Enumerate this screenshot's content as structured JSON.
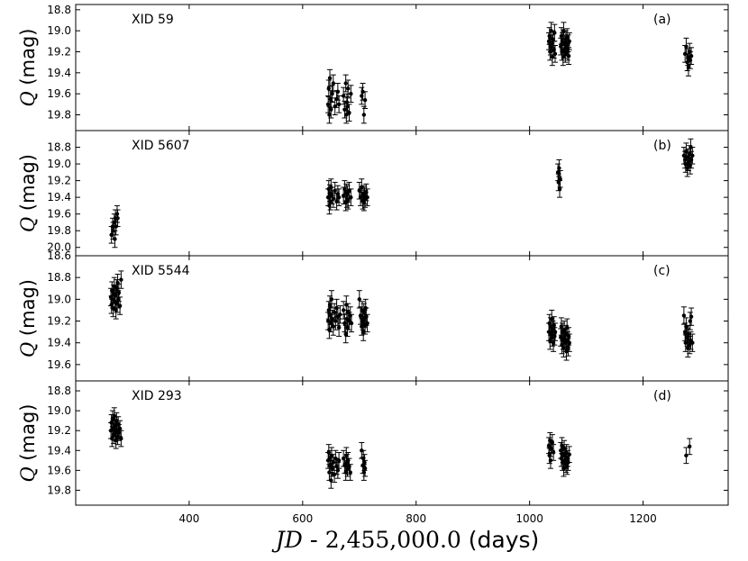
{
  "figure": {
    "xlabel_prefix": "JD",
    "xlabel_sep": " - ",
    "xlabel_offset": "2,455,000.0",
    "xlabel_unit": "(days)",
    "ylabel_symbol": "Q",
    "ylabel_unit": "(mag)"
  },
  "chart_data": [
    {
      "type": "scatter",
      "title": "XID 59",
      "panel_label": "(a)",
      "xlim": [
        200,
        1350
      ],
      "ylim": [
        19.95,
        18.75
      ],
      "xticks": [
        400,
        600,
        800,
        1000,
        1200
      ],
      "yticks": [
        18.8,
        19.0,
        19.2,
        19.4,
        19.6,
        19.8
      ],
      "ytick_labels": [
        "18.8",
        "19.0",
        "19.2",
        "19.4",
        "19.6",
        "19.8"
      ],
      "points": [
        [
          645,
          19.7
        ],
        [
          646,
          19.55
        ],
        [
          647,
          19.8
        ],
        [
          648,
          19.45
        ],
        [
          649,
          19.65
        ],
        [
          650,
          19.75
        ],
        [
          652,
          19.6
        ],
        [
          654,
          19.5
        ],
        [
          657,
          19.72
        ],
        [
          660,
          19.65
        ],
        [
          662,
          19.58
        ],
        [
          664,
          19.7
        ],
        [
          672,
          19.62
        ],
        [
          674,
          19.75
        ],
        [
          676,
          19.5
        ],
        [
          677,
          19.8
        ],
        [
          678,
          19.68
        ],
        [
          679,
          19.72
        ],
        [
          680,
          19.55
        ],
        [
          682,
          19.78
        ],
        [
          685,
          19.6
        ],
        [
          704,
          19.62
        ],
        [
          706,
          19.58
        ],
        [
          708,
          19.8
        ],
        [
          710,
          19.66
        ],
        [
          1034,
          19.1
        ],
        [
          1035,
          19.05
        ],
        [
          1036,
          19.2
        ],
        [
          1037,
          19.15
        ],
        [
          1038,
          19.0
        ],
        [
          1039,
          19.12
        ],
        [
          1040,
          19.25
        ],
        [
          1041,
          19.08
        ],
        [
          1043,
          19.18
        ],
        [
          1044,
          19.02
        ],
        [
          1045,
          19.22
        ],
        [
          1055,
          19.15
        ],
        [
          1056,
          19.05
        ],
        [
          1057,
          19.2
        ],
        [
          1058,
          19.1
        ],
        [
          1059,
          19.25
        ],
        [
          1060,
          19.0
        ],
        [
          1061,
          19.18
        ],
        [
          1062,
          19.12
        ],
        [
          1063,
          19.22
        ],
        [
          1064,
          19.08
        ],
        [
          1065,
          19.16
        ],
        [
          1066,
          19.06
        ],
        [
          1067,
          19.2
        ],
        [
          1068,
          19.12
        ],
        [
          1069,
          19.24
        ],
        [
          1070,
          19.1
        ],
        [
          1274,
          19.22
        ],
        [
          1276,
          19.15
        ],
        [
          1278,
          19.3
        ],
        [
          1279,
          19.25
        ],
        [
          1280,
          19.35
        ],
        [
          1282,
          19.2
        ],
        [
          1283,
          19.28
        ],
        [
          1285,
          19.24
        ]
      ],
      "yerr": 0.08
    },
    {
      "type": "scatter",
      "title": "XID 5607",
      "panel_label": "(b)",
      "xlim": [
        200,
        1350
      ],
      "ylim": [
        20.1,
        18.6
      ],
      "xticks": [
        400,
        600,
        800,
        1000,
        1200
      ],
      "yticks": [
        18.8,
        19.0,
        19.2,
        19.4,
        19.6,
        19.8,
        20.0
      ],
      "ytick_labels": [
        "18.8",
        "19.0",
        "19.2",
        "19.4",
        "19.6",
        "19.8",
        "20.0"
      ],
      "points": [
        [
          263,
          19.85
        ],
        [
          265,
          19.75
        ],
        [
          266,
          19.8
        ],
        [
          268,
          19.7
        ],
        [
          269,
          19.9
        ],
        [
          270,
          19.65
        ],
        [
          271,
          19.75
        ],
        [
          273,
          19.6
        ],
        [
          274,
          19.65
        ],
        [
          645,
          19.4
        ],
        [
          646,
          19.3
        ],
        [
          647,
          19.5
        ],
        [
          648,
          19.35
        ],
        [
          649,
          19.45
        ],
        [
          650,
          19.28
        ],
        [
          652,
          19.38
        ],
        [
          654,
          19.42
        ],
        [
          657,
          19.32
        ],
        [
          660,
          19.45
        ],
        [
          662,
          19.36
        ],
        [
          664,
          19.4
        ],
        [
          672,
          19.38
        ],
        [
          674,
          19.3
        ],
        [
          676,
          19.46
        ],
        [
          677,
          19.34
        ],
        [
          678,
          19.42
        ],
        [
          679,
          19.36
        ],
        [
          680,
          19.44
        ],
        [
          682,
          19.32
        ],
        [
          685,
          19.4
        ],
        [
          700,
          19.32
        ],
        [
          702,
          19.4
        ],
        [
          704,
          19.28
        ],
        [
          706,
          19.44
        ],
        [
          707,
          19.36
        ],
        [
          708,
          19.46
        ],
        [
          709,
          19.38
        ],
        [
          710,
          19.42
        ],
        [
          712,
          19.34
        ],
        [
          714,
          19.4
        ],
        [
          1050,
          19.1
        ],
        [
          1051,
          19.22
        ],
        [
          1052,
          19.05
        ],
        [
          1053,
          19.3
        ],
        [
          1054,
          19.18
        ],
        [
          1272,
          18.9
        ],
        [
          1274,
          18.95
        ],
        [
          1275,
          19.0
        ],
        [
          1276,
          18.85
        ],
        [
          1278,
          19.05
        ],
        [
          1279,
          18.92
        ],
        [
          1280,
          18.98
        ],
        [
          1282,
          18.88
        ],
        [
          1283,
          19.02
        ],
        [
          1284,
          18.8
        ],
        [
          1285,
          18.95
        ],
        [
          1287,
          18.9
        ]
      ],
      "yerr": 0.1
    },
    {
      "type": "scatter",
      "title": "XID 5544",
      "panel_label": "(c)",
      "xlim": [
        200,
        1350
      ],
      "ylim": [
        19.75,
        18.6
      ],
      "xticks": [
        400,
        600,
        800,
        1000,
        1200
      ],
      "yticks": [
        18.6,
        18.8,
        19.0,
        19.2,
        19.4,
        19.6
      ],
      "ytick_labels": [
        "18.6",
        "18.8",
        "19.0",
        "19.2",
        "19.4",
        "19.6"
      ],
      "points": [
        [
          262,
          18.98
        ],
        [
          263,
          19.05
        ],
        [
          264,
          18.92
        ],
        [
          265,
          19.0
        ],
        [
          266,
          19.08
        ],
        [
          267,
          18.95
        ],
        [
          268,
          18.88
        ],
        [
          269,
          19.02
        ],
        [
          270,
          18.96
        ],
        [
          271,
          19.1
        ],
        [
          272,
          18.9
        ],
        [
          273,
          19.04
        ],
        [
          274,
          18.85
        ],
        [
          275,
          19.0
        ],
        [
          276,
          18.94
        ],
        [
          278,
          19.06
        ],
        [
          280,
          18.82
        ],
        [
          645,
          19.2
        ],
        [
          646,
          19.1
        ],
        [
          647,
          19.28
        ],
        [
          648,
          19.05
        ],
        [
          649,
          19.15
        ],
        [
          650,
          19.22
        ],
        [
          651,
          19.0
        ],
        [
          652,
          19.18
        ],
        [
          654,
          19.25
        ],
        [
          656,
          19.12
        ],
        [
          658,
          19.2
        ],
        [
          660,
          19.08
        ],
        [
          662,
          19.16
        ],
        [
          664,
          19.26
        ],
        [
          666,
          19.14
        ],
        [
          672,
          19.1
        ],
        [
          674,
          19.22
        ],
        [
          676,
          19.32
        ],
        [
          677,
          19.05
        ],
        [
          678,
          19.18
        ],
        [
          679,
          19.26
        ],
        [
          680,
          19.12
        ],
        [
          682,
          19.2
        ],
        [
          684,
          19.15
        ],
        [
          686,
          19.22
        ],
        [
          700,
          19.0
        ],
        [
          702,
          19.15
        ],
        [
          704,
          19.25
        ],
        [
          705,
          19.1
        ],
        [
          706,
          19.2
        ],
        [
          707,
          19.3
        ],
        [
          708,
          19.12
        ],
        [
          709,
          19.18
        ],
        [
          710,
          19.24
        ],
        [
          711,
          19.08
        ],
        [
          712,
          19.16
        ],
        [
          714,
          19.22
        ],
        [
          1034,
          19.3
        ],
        [
          1035,
          19.22
        ],
        [
          1036,
          19.38
        ],
        [
          1037,
          19.25
        ],
        [
          1038,
          19.32
        ],
        [
          1039,
          19.18
        ],
        [
          1040,
          19.35
        ],
        [
          1041,
          19.28
        ],
        [
          1042,
          19.4
        ],
        [
          1043,
          19.24
        ],
        [
          1044,
          19.34
        ],
        [
          1045,
          19.3
        ],
        [
          1055,
          19.35
        ],
        [
          1056,
          19.25
        ],
        [
          1057,
          19.42
        ],
        [
          1058,
          19.3
        ],
        [
          1059,
          19.38
        ],
        [
          1060,
          19.45
        ],
        [
          1061,
          19.28
        ],
        [
          1062,
          19.36
        ],
        [
          1063,
          19.4
        ],
        [
          1064,
          19.32
        ],
        [
          1065,
          19.48
        ],
        [
          1066,
          19.26
        ],
        [
          1067,
          19.38
        ],
        [
          1068,
          19.44
        ],
        [
          1069,
          19.34
        ],
        [
          1070,
          19.4
        ],
        [
          1272,
          19.15
        ],
        [
          1274,
          19.3
        ],
        [
          1275,
          19.4
        ],
        [
          1276,
          19.25
        ],
        [
          1278,
          19.35
        ],
        [
          1279,
          19.45
        ],
        [
          1280,
          19.32
        ],
        [
          1282,
          19.42
        ],
        [
          1283,
          19.2
        ],
        [
          1284,
          19.38
        ],
        [
          1285,
          19.16
        ],
        [
          1287,
          19.4
        ]
      ],
      "yerr": 0.08
    },
    {
      "type": "scatter",
      "title": "XID 293",
      "panel_label": "(d)",
      "xlim": [
        200,
        1350
      ],
      "ylim": [
        19.95,
        18.7
      ],
      "xticks": [
        400,
        600,
        800,
        1000,
        1200
      ],
      "yticks": [
        18.8,
        19.0,
        19.2,
        19.4,
        19.6,
        19.8
      ],
      "ytick_labels": [
        "18.8",
        "19.0",
        "19.2",
        "19.4",
        "19.6",
        "19.8"
      ],
      "points": [
        [
          262,
          19.2
        ],
        [
          263,
          19.12
        ],
        [
          264,
          19.28
        ],
        [
          265,
          19.08
        ],
        [
          266,
          19.18
        ],
        [
          267,
          19.25
        ],
        [
          268,
          19.05
        ],
        [
          269,
          19.15
        ],
        [
          270,
          19.22
        ],
        [
          271,
          19.3
        ],
        [
          272,
          19.1
        ],
        [
          273,
          19.2
        ],
        [
          274,
          19.26
        ],
        [
          275,
          19.14
        ],
        [
          276,
          19.22
        ],
        [
          278,
          19.18
        ],
        [
          280,
          19.28
        ],
        [
          645,
          19.5
        ],
        [
          646,
          19.42
        ],
        [
          647,
          19.62
        ],
        [
          648,
          19.48
        ],
        [
          649,
          19.55
        ],
        [
          650,
          19.7
        ],
        [
          651,
          19.45
        ],
        [
          652,
          19.58
        ],
        [
          654,
          19.52
        ],
        [
          656,
          19.64
        ],
        [
          658,
          19.48
        ],
        [
          660,
          19.56
        ],
        [
          662,
          19.6
        ],
        [
          664,
          19.5
        ],
        [
          672,
          19.48
        ],
        [
          674,
          19.55
        ],
        [
          676,
          19.62
        ],
        [
          677,
          19.45
        ],
        [
          678,
          19.52
        ],
        [
          679,
          19.58
        ],
        [
          680,
          19.5
        ],
        [
          682,
          19.56
        ],
        [
          684,
          19.62
        ],
        [
          704,
          19.4
        ],
        [
          706,
          19.55
        ],
        [
          707,
          19.48
        ],
        [
          708,
          19.62
        ],
        [
          709,
          19.52
        ],
        [
          710,
          19.58
        ],
        [
          1034,
          19.35
        ],
        [
          1035,
          19.45
        ],
        [
          1036,
          19.3
        ],
        [
          1037,
          19.5
        ],
        [
          1038,
          19.38
        ],
        [
          1040,
          19.32
        ],
        [
          1042,
          19.42
        ],
        [
          1055,
          19.4
        ],
        [
          1056,
          19.48
        ],
        [
          1057,
          19.35
        ],
        [
          1058,
          19.52
        ],
        [
          1059,
          19.44
        ],
        [
          1060,
          19.58
        ],
        [
          1061,
          19.38
        ],
        [
          1062,
          19.5
        ],
        [
          1063,
          19.46
        ],
        [
          1064,
          19.54
        ],
        [
          1065,
          19.42
        ],
        [
          1066,
          19.56
        ],
        [
          1067,
          19.48
        ],
        [
          1068,
          19.52
        ],
        [
          1070,
          19.44
        ],
        [
          1276,
          19.45
        ],
        [
          1282,
          19.36
        ]
      ],
      "yerr": 0.08
    }
  ]
}
